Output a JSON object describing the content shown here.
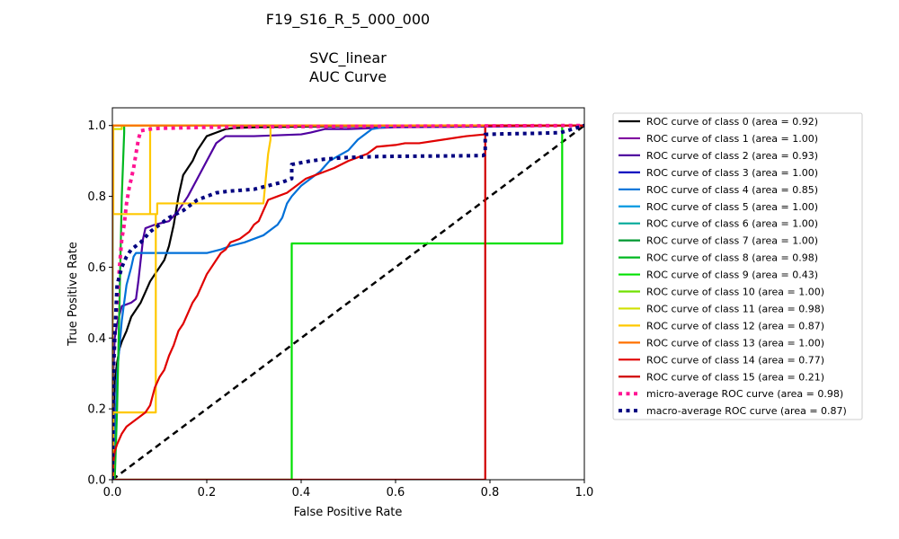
{
  "chart_data": {
    "type": "line",
    "title_lines": [
      "F19_S16_R_5_000_000",
      "",
      "SVC_linear",
      "AUC Curve"
    ],
    "xlabel": "False Positive Rate",
    "ylabel": "True Positive Rate",
    "xlim": [
      0,
      1.0
    ],
    "ylim": [
      0,
      1.05
    ],
    "xticks": [
      "0.0",
      "0.2",
      "0.4",
      "0.6",
      "0.8",
      "1.0"
    ],
    "yticks": [
      "0.0",
      "0.2",
      "0.4",
      "0.6",
      "0.8",
      "1.0"
    ],
    "xtick_values": [
      0,
      0.2,
      0.4,
      0.6,
      0.8,
      1.0
    ],
    "ytick_values": [
      0,
      0.2,
      0.4,
      0.6,
      0.8,
      1.0
    ],
    "legend_position": "outside-right",
    "series": [
      {
        "name": "ROC curve of class 0 (area = 0.92)",
        "color": "#000000",
        "style": "solid",
        "x": [
          0,
          0.003,
          0.005,
          0.01,
          0.015,
          0.02,
          0.03,
          0.04,
          0.05,
          0.06,
          0.07,
          0.08,
          0.09,
          0.1,
          0.11,
          0.12,
          0.13,
          0.14,
          0.15,
          0.16,
          0.17,
          0.18,
          0.19,
          0.2,
          0.21,
          0.22,
          0.24,
          0.26,
          0.3,
          0.4,
          0.6,
          1.0
        ],
        "y": [
          0,
          0.2,
          0.28,
          0.33,
          0.37,
          0.39,
          0.42,
          0.46,
          0.48,
          0.5,
          0.53,
          0.56,
          0.58,
          0.6,
          0.62,
          0.66,
          0.72,
          0.8,
          0.86,
          0.88,
          0.9,
          0.93,
          0.95,
          0.97,
          0.975,
          0.98,
          0.99,
          0.993,
          0.995,
          0.997,
          0.999,
          1.0
        ]
      },
      {
        "name": "ROC curve of class 1 (area = 1.00)",
        "color": "#8000a0",
        "style": "solid",
        "x": [
          0,
          0,
          1.0
        ],
        "y": [
          0,
          1.0,
          1.0
        ]
      },
      {
        "name": "ROC curve of class 2 (area = 0.93)",
        "color": "#5000a0",
        "style": "solid",
        "x": [
          0,
          0.002,
          0.005,
          0.01,
          0.02,
          0.04,
          0.05,
          0.055,
          0.06,
          0.065,
          0.07,
          0.09,
          0.12,
          0.14,
          0.16,
          0.18,
          0.2,
          0.22,
          0.24,
          0.3,
          0.4,
          0.42,
          0.45,
          0.5,
          0.6,
          0.8,
          1.0
        ],
        "y": [
          0,
          0.3,
          0.4,
          0.44,
          0.49,
          0.5,
          0.51,
          0.56,
          0.62,
          0.68,
          0.71,
          0.72,
          0.73,
          0.76,
          0.8,
          0.85,
          0.9,
          0.95,
          0.97,
          0.97,
          0.975,
          0.98,
          0.99,
          0.99,
          0.995,
          0.997,
          1.0
        ]
      },
      {
        "name": "ROC curve of class 3 (area = 1.00)",
        "color": "#0000c0",
        "style": "solid",
        "x": [
          0,
          0,
          1.0
        ],
        "y": [
          0,
          1.0,
          1.0
        ]
      },
      {
        "name": "ROC curve of class 4 (area = 0.85)",
        "color": "#0070d8",
        "style": "solid",
        "x": [
          0,
          0.005,
          0.01,
          0.02,
          0.03,
          0.04,
          0.045,
          0.05,
          0.1,
          0.15,
          0.2,
          0.23,
          0.25,
          0.28,
          0.32,
          0.35,
          0.36,
          0.37,
          0.38,
          0.4,
          0.42,
          0.44,
          0.46,
          0.5,
          0.52,
          0.55,
          0.6,
          0.8,
          1.0
        ],
        "y": [
          0,
          0.1,
          0.3,
          0.45,
          0.55,
          0.6,
          0.63,
          0.64,
          0.64,
          0.64,
          0.64,
          0.65,
          0.66,
          0.67,
          0.69,
          0.72,
          0.74,
          0.78,
          0.8,
          0.83,
          0.85,
          0.87,
          0.9,
          0.93,
          0.96,
          0.99,
          1.0,
          1.0,
          1.0
        ]
      },
      {
        "name": "ROC curve of class 5 (area = 1.00)",
        "color": "#0098e0",
        "style": "solid",
        "x": [
          0,
          0,
          1.0
        ],
        "y": [
          0,
          1.0,
          1.0
        ]
      },
      {
        "name": "ROC curve of class 6 (area = 1.00)",
        "color": "#00a898",
        "style": "solid",
        "x": [
          0,
          0,
          1.0
        ],
        "y": [
          0,
          1.0,
          1.0
        ]
      },
      {
        "name": "ROC curve of class 7 (area = 1.00)",
        "color": "#009830",
        "style": "solid",
        "x": [
          0,
          0,
          1.0
        ],
        "y": [
          0,
          1.0,
          1.0
        ]
      },
      {
        "name": "ROC curve of class 8 (area = 0.98)",
        "color": "#00b820",
        "style": "solid",
        "x": [
          0,
          0.005,
          0.01,
          0.015,
          0.02,
          0.025,
          0.025,
          1.0
        ],
        "y": [
          0,
          0.0,
          0.2,
          0.5,
          0.8,
          0.98,
          1.0,
          1.0
        ]
      },
      {
        "name": "ROC curve of class 9 (area = 0.43)",
        "color": "#00e000",
        "style": "solid",
        "x": [
          0,
          0.38,
          0.38,
          0.953,
          0.953,
          1.0
        ],
        "y": [
          0,
          0,
          0.667,
          0.667,
          1.0,
          1.0
        ]
      },
      {
        "name": "ROC curve of class 10 (area = 1.00)",
        "color": "#70e000",
        "style": "solid",
        "x": [
          0,
          0,
          1.0
        ],
        "y": [
          0,
          1.0,
          1.0
        ]
      },
      {
        "name": "ROC curve of class 11 (area = 0.98)",
        "color": "#d0e000",
        "style": "solid",
        "x": [
          0,
          0,
          0.02,
          0.02,
          1.0
        ],
        "y": [
          0,
          0.99,
          0.99,
          1.0,
          1.0
        ]
      },
      {
        "name": "ROC curve of class 12 (area = 0.87)",
        "color": "#ffc800",
        "style": "solid",
        "x": [
          0,
          0.002,
          0.002,
          0.09,
          0.09,
          0.092,
          0.092,
          0.075,
          0.08,
          0.08,
          0.002,
          0.002,
          0.092,
          0.095,
          0.095,
          0.32,
          0.325,
          0.33,
          0.335,
          0.335,
          1.0
        ],
        "y": [
          0,
          0,
          0.19,
          0.19,
          0.19,
          0.19,
          0.75,
          0.75,
          0.75,
          1.0,
          1.0,
          0.75,
          0.75,
          0.75,
          0.78,
          0.78,
          0.85,
          0.92,
          0.96,
          1.0,
          1.0
        ]
      },
      {
        "name": "ROC curve of class 13 (area = 1.00)",
        "color": "#ff7000",
        "style": "solid",
        "x": [
          0,
          0,
          1.0
        ],
        "y": [
          0,
          1.0,
          1.0
        ]
      },
      {
        "name": "ROC curve of class 14 (area = 0.77)",
        "color": "#e00000",
        "style": "solid",
        "x": [
          0,
          0.002,
          0.005,
          0.01,
          0.02,
          0.03,
          0.05,
          0.07,
          0.08,
          0.09,
          0.1,
          0.11,
          0.12,
          0.13,
          0.14,
          0.15,
          0.16,
          0.17,
          0.18,
          0.19,
          0.2,
          0.21,
          0.22,
          0.23,
          0.24,
          0.25,
          0.27,
          0.29,
          0.3,
          0.31,
          0.32,
          0.33,
          0.35,
          0.37,
          0.39,
          0.41,
          0.43,
          0.45,
          0.47,
          0.5,
          0.52,
          0.54,
          0.55,
          0.56,
          0.6,
          0.62,
          0.65,
          0.7,
          0.75,
          0.79,
          0.79,
          1.0
        ],
        "y": [
          0,
          0.05,
          0.08,
          0.1,
          0.13,
          0.15,
          0.17,
          0.19,
          0.21,
          0.26,
          0.29,
          0.31,
          0.35,
          0.38,
          0.42,
          0.44,
          0.47,
          0.5,
          0.52,
          0.55,
          0.58,
          0.6,
          0.62,
          0.64,
          0.65,
          0.67,
          0.68,
          0.7,
          0.72,
          0.73,
          0.76,
          0.79,
          0.8,
          0.81,
          0.83,
          0.85,
          0.86,
          0.87,
          0.88,
          0.9,
          0.91,
          0.92,
          0.93,
          0.94,
          0.945,
          0.95,
          0.95,
          0.96,
          0.97,
          0.975,
          1.0,
          1.0
        ]
      },
      {
        "name": "ROC curve of class 15 (area = 0.21)",
        "color": "#d00000",
        "style": "solid",
        "x": [
          0,
          0.79,
          0.79,
          1.0
        ],
        "y": [
          0,
          0,
          1.0,
          1.0
        ]
      },
      {
        "name": "micro-average ROC curve (area = 0.98)",
        "color": "#ff1493",
        "style": "dotted",
        "x": [
          0,
          0.002,
          0.005,
          0.01,
          0.015,
          0.02,
          0.025,
          0.03,
          0.035,
          0.04,
          0.045,
          0.05,
          0.055,
          0.06,
          0.08,
          0.1,
          0.2,
          0.4,
          0.6,
          0.8,
          1.0
        ],
        "y": [
          0,
          0.3,
          0.4,
          0.5,
          0.6,
          0.68,
          0.72,
          0.78,
          0.82,
          0.85,
          0.88,
          0.92,
          0.96,
          0.985,
          0.99,
          0.992,
          0.995,
          0.997,
          0.998,
          0.999,
          1.0
        ]
      },
      {
        "name": "macro-average ROC curve (area = 0.87)",
        "color": "#000080",
        "style": "dotted",
        "x": [
          0,
          0.002,
          0.005,
          0.01,
          0.02,
          0.03,
          0.04,
          0.05,
          0.06,
          0.08,
          0.1,
          0.12,
          0.15,
          0.18,
          0.2,
          0.22,
          0.25,
          0.3,
          0.33,
          0.36,
          0.38,
          0.38,
          0.42,
          0.45,
          0.5,
          0.55,
          0.6,
          0.7,
          0.78,
          0.785,
          0.79,
          0.79,
          0.85,
          0.9,
          0.95,
          1.0
        ],
        "y": [
          0,
          0.3,
          0.4,
          0.55,
          0.6,
          0.63,
          0.65,
          0.66,
          0.67,
          0.7,
          0.72,
          0.74,
          0.76,
          0.79,
          0.8,
          0.81,
          0.815,
          0.82,
          0.83,
          0.84,
          0.85,
          0.89,
          0.9,
          0.905,
          0.91,
          0.912,
          0.913,
          0.914,
          0.915,
          0.915,
          0.92,
          0.975,
          0.977,
          0.978,
          0.98,
          1.0
        ]
      }
    ],
    "reference_line": {
      "x": [
        0,
        1
      ],
      "y": [
        0,
        1
      ],
      "color": "#000000",
      "style": "dashed"
    }
  }
}
